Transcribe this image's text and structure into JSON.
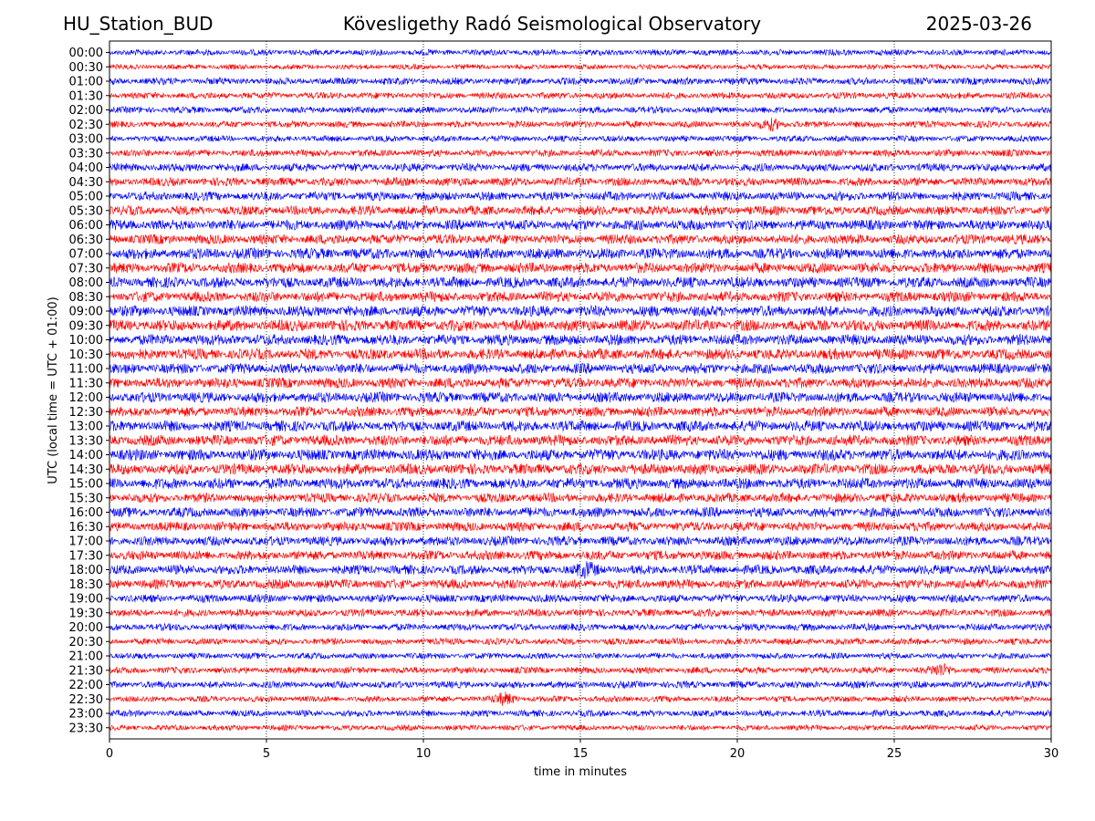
{
  "header": {
    "station": "HU_Station_BUD",
    "observatory": "Kövesligethy Radó Seismological Observatory",
    "date": "2025-03-26"
  },
  "chart_data": {
    "type": "line",
    "title": "Kövesligethy Radó Seismological Observatory",
    "xlabel": "time in minutes",
    "ylabel": "UTC (local time = UTC + 01:00)",
    "xlim": [
      0,
      30
    ],
    "xticks": [
      0,
      5,
      10,
      15,
      20,
      25,
      30
    ],
    "vertical_gridlines_at": [
      5,
      10,
      15,
      20,
      25
    ],
    "grid": "vertical dotted",
    "row_labels": [
      "00:00",
      "00:30",
      "01:00",
      "01:30",
      "02:00",
      "02:30",
      "03:00",
      "03:30",
      "04:00",
      "04:30",
      "05:00",
      "05:30",
      "06:00",
      "06:30",
      "07:00",
      "07:30",
      "08:00",
      "08:30",
      "09:00",
      "09:30",
      "10:00",
      "10:30",
      "11:00",
      "11:30",
      "12:00",
      "12:30",
      "13:00",
      "13:30",
      "14:00",
      "14:30",
      "15:00",
      "15:30",
      "16:00",
      "16:30",
      "17:00",
      "17:30",
      "18:00",
      "18:30",
      "19:00",
      "19:30",
      "20:00",
      "20:30",
      "21:00",
      "21:30",
      "22:00",
      "22:30",
      "23:00",
      "23:30"
    ],
    "row_colors": [
      "#0000ff",
      "#ff0000"
    ],
    "trace_amplitude_levels": [
      0.35,
      0.25,
      0.45,
      0.4,
      0.4,
      0.4,
      0.35,
      0.45,
      0.55,
      0.6,
      0.65,
      0.7,
      0.8,
      0.75,
      0.85,
      0.8,
      0.85,
      0.8,
      0.85,
      0.9,
      0.85,
      0.85,
      0.8,
      0.8,
      0.8,
      0.75,
      0.85,
      0.85,
      0.9,
      0.85,
      0.85,
      0.7,
      0.75,
      0.7,
      0.7,
      0.7,
      0.7,
      0.7,
      0.55,
      0.5,
      0.45,
      0.4,
      0.35,
      0.4,
      0.45,
      0.35,
      0.4,
      0.3
    ],
    "notable_events": [
      {
        "row": "18:00",
        "minute": 15.2
      },
      {
        "row": "22:30",
        "minute": 12.6
      },
      {
        "row": "02:30",
        "minute": 21.1
      },
      {
        "row": "21:30",
        "minute": 26.5
      }
    ]
  }
}
